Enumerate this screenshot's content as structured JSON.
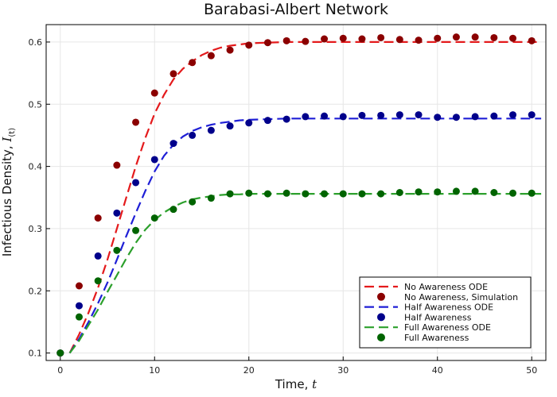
{
  "chart_data": {
    "type": "scatter",
    "title": "Barabasi-Albert Network",
    "xlabel": "Time, ",
    "xlabel_var": "t",
    "ylabel": "Infectious Density, ",
    "ylabel_var": "I",
    "ylabel_sub": "(t)",
    "xlim": [
      -1.5,
      51.5
    ],
    "ylim": [
      0.088,
      0.628
    ],
    "xticks": [
      0,
      10,
      20,
      30,
      40,
      50
    ],
    "yticks": [
      0.1,
      0.2,
      0.3,
      0.4,
      0.5,
      0.6
    ],
    "ytick_labels": [
      "0.1",
      "0.2",
      "0.3",
      "0.4",
      "0.5",
      "0.6"
    ],
    "grid": true,
    "legend_position": "bottom-right",
    "series": [
      {
        "name": "No Awareness ODE",
        "kind": "line",
        "style": "dashed",
        "color": "#e41a1c",
        "x": [
          1,
          2,
          3,
          4,
          5,
          6,
          7,
          8,
          9,
          10,
          11,
          12,
          13,
          14,
          15,
          16,
          17,
          18,
          19,
          20,
          22,
          24,
          26,
          28,
          30,
          35,
          40,
          45,
          50,
          51
        ],
        "y": [
          0.1,
          0.13,
          0.165,
          0.205,
          0.25,
          0.3,
          0.35,
          0.4,
          0.445,
          0.485,
          0.515,
          0.54,
          0.557,
          0.569,
          0.579,
          0.586,
          0.591,
          0.594,
          0.596,
          0.598,
          0.599,
          0.6,
          0.6,
          0.6,
          0.6,
          0.6,
          0.6,
          0.6,
          0.6,
          0.6
        ]
      },
      {
        "name": "No Awareness, Simulation",
        "kind": "points",
        "color": "#8b0000",
        "x": [
          0,
          2,
          4,
          6,
          8,
          10,
          12,
          14,
          16,
          18,
          20,
          22,
          24,
          26,
          28,
          30,
          32,
          34,
          36,
          38,
          40,
          42,
          44,
          46,
          48,
          50
        ],
        "y": [
          0.1,
          0.208,
          0.317,
          0.402,
          0.471,
          0.518,
          0.549,
          0.567,
          0.578,
          0.587,
          0.595,
          0.599,
          0.602,
          0.601,
          0.605,
          0.606,
          0.605,
          0.607,
          0.604,
          0.603,
          0.606,
          0.608,
          0.608,
          0.607,
          0.606,
          0.602
        ]
      },
      {
        "name": "Half Awareness ODE",
        "kind": "line",
        "style": "dashed",
        "color": "#1f1fd6",
        "x": [
          1,
          2,
          3,
          4,
          5,
          6,
          7,
          8,
          9,
          10,
          11,
          12,
          13,
          14,
          15,
          16,
          17,
          18,
          19,
          20,
          22,
          24,
          26,
          28,
          30,
          35,
          40,
          45,
          50,
          51
        ],
        "y": [
          0.1,
          0.123,
          0.15,
          0.18,
          0.213,
          0.25,
          0.288,
          0.325,
          0.36,
          0.392,
          0.417,
          0.435,
          0.448,
          0.457,
          0.463,
          0.467,
          0.47,
          0.472,
          0.474,
          0.475,
          0.476,
          0.477,
          0.477,
          0.477,
          0.477,
          0.477,
          0.477,
          0.477,
          0.477,
          0.477
        ]
      },
      {
        "name": "Half Awareness",
        "kind": "points",
        "color": "#00008b",
        "x": [
          0,
          2,
          4,
          6,
          8,
          10,
          12,
          14,
          16,
          18,
          20,
          22,
          24,
          26,
          28,
          30,
          32,
          34,
          36,
          38,
          40,
          42,
          44,
          46,
          48,
          50
        ],
        "y": [
          0.1,
          0.176,
          0.256,
          0.325,
          0.374,
          0.411,
          0.437,
          0.45,
          0.458,
          0.465,
          0.47,
          0.474,
          0.476,
          0.48,
          0.481,
          0.48,
          0.482,
          0.482,
          0.483,
          0.483,
          0.479,
          0.479,
          0.48,
          0.481,
          0.483,
          0.483
        ]
      },
      {
        "name": "Full Awareness ODE",
        "kind": "line",
        "style": "dashed",
        "color": "#2ca02c",
        "x": [
          1,
          2,
          3,
          4,
          5,
          6,
          7,
          8,
          9,
          10,
          11,
          12,
          13,
          14,
          15,
          16,
          17,
          18,
          19,
          20,
          22,
          24,
          26,
          28,
          30,
          35,
          40,
          45,
          50,
          51
        ],
        "y": [
          0.1,
          0.12,
          0.145,
          0.17,
          0.198,
          0.225,
          0.252,
          0.277,
          0.298,
          0.314,
          0.326,
          0.335,
          0.342,
          0.347,
          0.35,
          0.352,
          0.354,
          0.355,
          0.355,
          0.356,
          0.356,
          0.356,
          0.356,
          0.356,
          0.356,
          0.356,
          0.356,
          0.356,
          0.356,
          0.356
        ]
      },
      {
        "name": "Full Awareness",
        "kind": "points",
        "color": "#006400",
        "x": [
          0,
          2,
          4,
          6,
          8,
          10,
          12,
          14,
          16,
          18,
          20,
          22,
          24,
          26,
          28,
          30,
          32,
          34,
          36,
          38,
          40,
          42,
          44,
          46,
          48,
          50
        ],
        "y": [
          0.1,
          0.158,
          0.216,
          0.265,
          0.297,
          0.317,
          0.331,
          0.343,
          0.349,
          0.356,
          0.357,
          0.356,
          0.357,
          0.356,
          0.356,
          0.356,
          0.356,
          0.356,
          0.358,
          0.359,
          0.359,
          0.36,
          0.36,
          0.358,
          0.357,
          0.357
        ]
      }
    ]
  }
}
